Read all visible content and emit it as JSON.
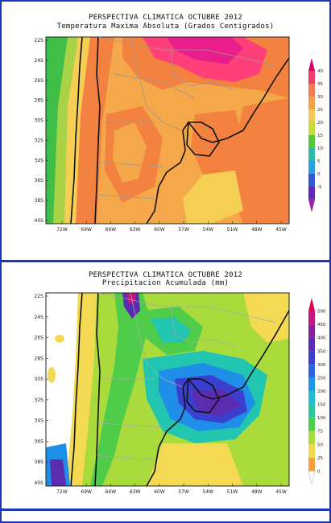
{
  "panels": [
    {
      "title1": "PERSPECTIVA CLIMATICA OCTUBRE 2012",
      "title2": "Temperatura Maxima Absoluta (Grados Centigrados)",
      "lat_ticks": [
        "22S",
        "24S",
        "26S",
        "28S",
        "30S",
        "32S",
        "34S",
        "36S",
        "38S",
        "40S"
      ],
      "lon_ticks": [
        "72W",
        "69W",
        "66W",
        "63W",
        "60W",
        "57W",
        "54W",
        "51W",
        "48W",
        "45W"
      ],
      "legend_labels": [
        "40",
        "35",
        "30",
        "25",
        "20",
        "15",
        "10",
        "5",
        "0",
        "-5"
      ],
      "legend_colors": [
        "#d6006f",
        "#ee3f6f",
        "#f37a52",
        "#f3a04a",
        "#f3c85a",
        "#c8dc3c",
        "#59c43f",
        "#2fb8a3",
        "#28a0dc",
        "#2f5ad0",
        "#5d2ab5",
        "#a21caa"
      ],
      "zones": {
        "hot": "#ff3f7a",
        "warm": "#f3813f",
        "mild": "#f5a849",
        "cool": "#f4cf54",
        "cold": "#a9d346",
        "colder": "#3fbf47"
      }
    },
    {
      "title1": "PERSPECTIVA CLIMATICA OCTUBRE 2012",
      "title2": "Precipitacion Acumulada (mm)",
      "lat_ticks": [
        "22S",
        "24S",
        "26S",
        "28S",
        "30S",
        "32S",
        "34S",
        "36S",
        "38S",
        "40S"
      ],
      "lon_ticks": [
        "72W",
        "69W",
        "66W",
        "63W",
        "60W",
        "57W",
        "54W",
        "51W",
        "48W",
        "45W"
      ],
      "legend_labels": [
        "500",
        "450",
        "400",
        "350",
        "300",
        "250",
        "200",
        "150",
        "100",
        "75",
        "50",
        "25",
        "0"
      ],
      "legend_colors": [
        "#e0004f",
        "#c4167e",
        "#8a1f99",
        "#5b2bb0",
        "#3a3fcf",
        "#2f64e0",
        "#1f95e6",
        "#1fbed3",
        "#2ac79a",
        "#4fcc4a",
        "#aadb3c",
        "#f1d94c",
        "#f3a040",
        "#ffffff"
      ],
      "zones": {
        "dry": "#ffffff",
        "low": "#f4d954",
        "lowmid": "#aadb3c",
        "mid": "#4fcc4a",
        "midhigh": "#21c5b0",
        "high": "#1f8ee8",
        "veryhigh": "#5b2bb0",
        "peak": "#c4167e"
      }
    }
  ]
}
